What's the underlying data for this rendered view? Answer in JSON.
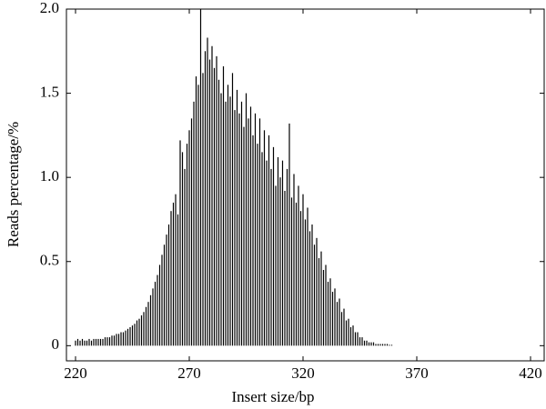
{
  "chart_data": {
    "type": "bar",
    "xlabel": "Insert size/bp",
    "ylabel": "Reads percentage/%",
    "x": [
      220,
      221,
      222,
      223,
      224,
      225,
      226,
      227,
      228,
      229,
      230,
      231,
      232,
      233,
      234,
      235,
      236,
      237,
      238,
      239,
      240,
      241,
      242,
      243,
      244,
      245,
      246,
      247,
      248,
      249,
      250,
      251,
      252,
      253,
      254,
      255,
      256,
      257,
      258,
      259,
      260,
      261,
      262,
      263,
      264,
      265,
      266,
      267,
      268,
      269,
      270,
      271,
      272,
      273,
      274,
      275,
      276,
      277,
      278,
      279,
      280,
      281,
      282,
      283,
      284,
      285,
      286,
      287,
      288,
      289,
      290,
      291,
      292,
      293,
      294,
      295,
      296,
      297,
      298,
      299,
      300,
      301,
      302,
      303,
      304,
      305,
      306,
      307,
      308,
      309,
      310,
      311,
      312,
      313,
      314,
      315,
      316,
      317,
      318,
      319,
      320,
      321,
      322,
      323,
      324,
      325,
      326,
      327,
      328,
      329,
      330,
      331,
      332,
      333,
      334,
      335,
      336,
      337,
      338,
      339,
      340,
      341,
      342,
      343,
      344,
      345,
      346,
      347,
      348,
      349,
      350,
      351,
      352,
      353,
      354,
      355,
      356,
      357,
      358,
      359
    ],
    "values": [
      0.03,
      0.04,
      0.03,
      0.04,
      0.03,
      0.03,
      0.04,
      0.03,
      0.04,
      0.04,
      0.04,
      0.04,
      0.04,
      0.05,
      0.05,
      0.05,
      0.06,
      0.06,
      0.07,
      0.07,
      0.08,
      0.08,
      0.09,
      0.1,
      0.11,
      0.12,
      0.13,
      0.15,
      0.16,
      0.18,
      0.2,
      0.23,
      0.26,
      0.3,
      0.34,
      0.38,
      0.42,
      0.48,
      0.54,
      0.6,
      0.66,
      0.72,
      0.8,
      0.85,
      0.9,
      0.78,
      1.22,
      1.15,
      1.05,
      1.2,
      1.28,
      1.35,
      1.45,
      1.6,
      1.55,
      2.0,
      1.62,
      1.75,
      1.83,
      1.7,
      1.78,
      1.65,
      1.72,
      1.58,
      1.5,
      1.66,
      1.45,
      1.55,
      1.48,
      1.62,
      1.4,
      1.52,
      1.38,
      1.45,
      1.3,
      1.5,
      1.35,
      1.42,
      1.25,
      1.38,
      1.2,
      1.35,
      1.15,
      1.28,
      1.1,
      1.25,
      1.05,
      1.18,
      0.95,
      1.12,
      1.0,
      1.1,
      0.92,
      1.05,
      1.32,
      0.88,
      1.02,
      0.85,
      0.95,
      0.8,
      0.9,
      0.75,
      0.82,
      0.68,
      0.72,
      0.6,
      0.64,
      0.52,
      0.56,
      0.45,
      0.48,
      0.38,
      0.4,
      0.32,
      0.34,
      0.26,
      0.28,
      0.2,
      0.22,
      0.15,
      0.16,
      0.11,
      0.12,
      0.08,
      0.08,
      0.05,
      0.05,
      0.03,
      0.03,
      0.02,
      0.02,
      0.02,
      0.01,
      0.01,
      0.01,
      0.01,
      0.01,
      0.01,
      0.005,
      0.005
    ],
    "color": "#000000",
    "xlim": [
      216,
      426
    ],
    "xticks": [
      220,
      270,
      320,
      370,
      420
    ],
    "ylim": [
      -0.09,
      2.0
    ],
    "yticks": [
      0,
      0.5,
      {
        "value": 1.0,
        "label": "1.0"
      },
      1.5,
      {
        "value": 2.0,
        "label": "2.0"
      }
    ]
  }
}
